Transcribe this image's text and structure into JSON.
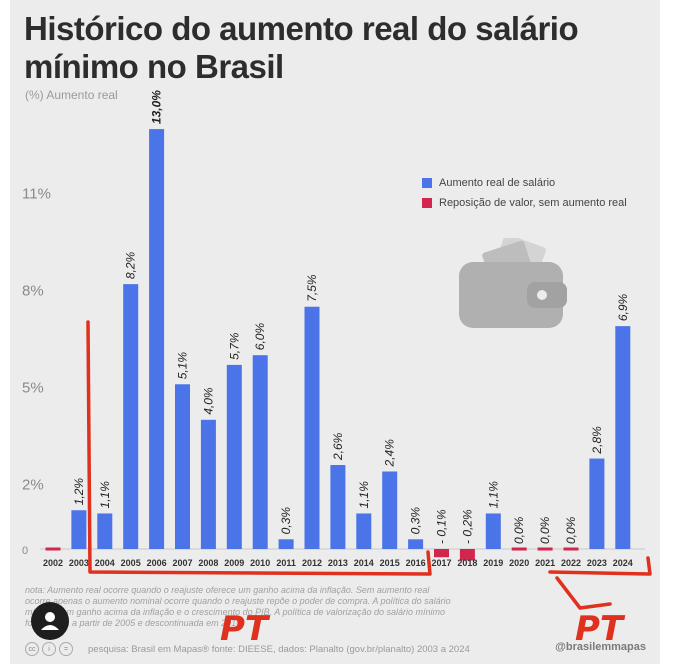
{
  "title": "Histórico do aumento real do salário mínimo no Brasil",
  "subtitle": "(%) Aumento real",
  "legend": {
    "real": "Aumento real de salário",
    "reposicao": "Reposição de valor, sem aumento real"
  },
  "note": "nota: Aumento real ocorre quando o reajuste oferece um ganho acima da inflação. Sem aumento real ocorre apenas o aumento nominal ocorre quando o reajuste repõe o poder de compra. A política do salário mínimo com ganho acima da inflação e o crescimento do PIB. A política de valorização do salário mínimo foi adotada a partir de 2005 e descontinuada em 2016.",
  "footer": "pesquisa: Brasil em Mapas® fonte: DIEESE, dados: Planalto (gov.br/planalto) 2003 a 2024",
  "handle": "@brasilemmapas",
  "annotations": [
    "PT",
    "PT"
  ],
  "colors": {
    "real": "#4a74e8",
    "reposicao": "#d3264f",
    "background": "#ececec",
    "annotation": "#e0301e"
  },
  "icons": [
    "wallet-icon",
    "avatar-icon",
    "creative-commons-icon"
  ],
  "chart_data": {
    "type": "bar",
    "categories": [
      "2002",
      "2003",
      "2004",
      "2005",
      "2006",
      "2007",
      "2008",
      "2009",
      "2010",
      "2011",
      "2012",
      "2013",
      "2014",
      "2015",
      "2016",
      "2017",
      "2018",
      "2019",
      "2020",
      "2021",
      "2022",
      "2023",
      "2024"
    ],
    "values": [
      0,
      1.2,
      1.1,
      8.2,
      13.0,
      5.1,
      4.0,
      5.7,
      6.0,
      0.3,
      7.5,
      2.6,
      1.1,
      2.4,
      0.3,
      -0.1,
      -0.2,
      1.1,
      0.0,
      0.0,
      0.0,
      2.8,
      6.9
    ],
    "labels": [
      "",
      "1,2%",
      "1,1%",
      "8,2%",
      "13,0%",
      "5,1%",
      "4,0%",
      "5,7%",
      "6,0%",
      "0,3%",
      "7,5%",
      "2,6%",
      "1,1%",
      "2,4%",
      "0,3%",
      "- 0,1%",
      "- 0,2%",
      "1,1%",
      "0,0%",
      "0,0%",
      "0,0%",
      "2,8%",
      "6,9%"
    ],
    "series_type": [
      "reposicao",
      "real",
      "real",
      "real",
      "real",
      "real",
      "real",
      "real",
      "real",
      "real",
      "real",
      "real",
      "real",
      "real",
      "real",
      "reposicao",
      "reposicao",
      "real",
      "reposicao",
      "reposicao",
      "reposicao",
      "real",
      "real"
    ],
    "yticks": [
      "11%",
      "8%",
      "5%",
      "2%",
      "0"
    ],
    "ytick_values": [
      11,
      8,
      5,
      2,
      0
    ],
    "ylim": [
      0,
      13
    ]
  }
}
